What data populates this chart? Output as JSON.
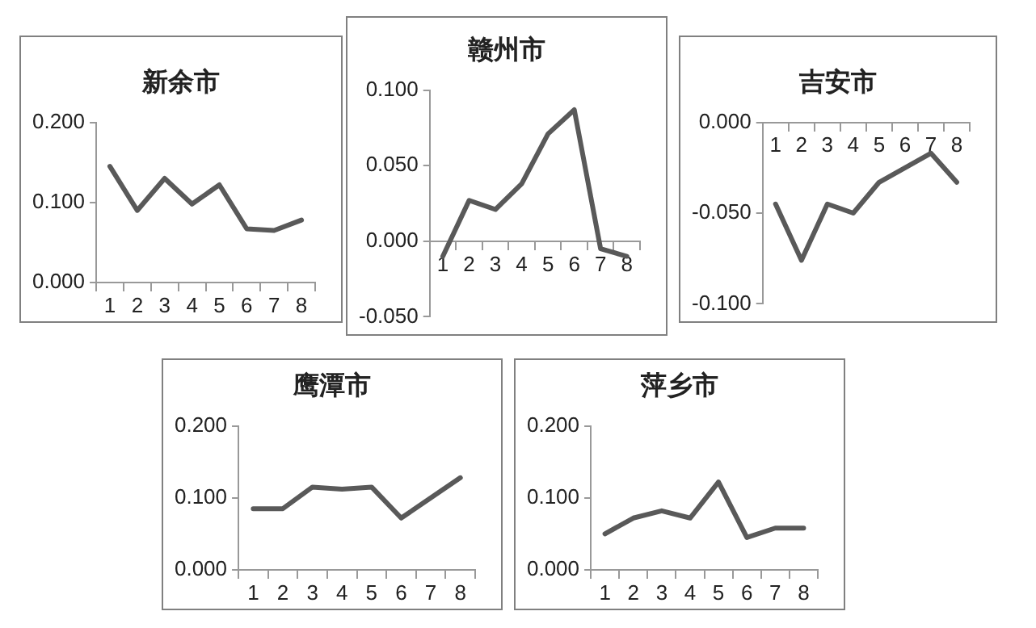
{
  "chart_data": [
    {
      "type": "line",
      "title": "新余市",
      "categories": [
        "1",
        "2",
        "3",
        "4",
        "5",
        "6",
        "7",
        "8"
      ],
      "series": [
        {
          "color": "#595959",
          "values": [
            0.145,
            0.09,
            0.13,
            0.098,
            0.122,
            0.067,
            0.065,
            0.078
          ]
        }
      ],
      "ylim": [
        0,
        0.2
      ],
      "yticks": [
        {
          "value": 0,
          "label": "0.000"
        },
        {
          "value": 0.1,
          "label": "0.100"
        },
        {
          "value": 0.2,
          "label": "0.200"
        }
      ],
      "grid": false,
      "legend": false,
      "marker": "none",
      "line_style": "solid"
    },
    {
      "type": "line",
      "title": "赣州市",
      "categories": [
        "1",
        "2",
        "3",
        "4",
        "5",
        "6",
        "7",
        "8"
      ],
      "series": [
        {
          "color": "#595959",
          "values": [
            -0.01,
            0.027,
            0.021,
            0.038,
            0.071,
            0.087,
            -0.005,
            -0.01
          ]
        }
      ],
      "ylim": [
        -0.05,
        0.1
      ],
      "yticks": [
        {
          "value": -0.05,
          "label": "-0.050"
        },
        {
          "value": 0,
          "label": "0.000"
        },
        {
          "value": 0.05,
          "label": "0.050"
        },
        {
          "value": 0.1,
          "label": "0.100"
        }
      ],
      "grid": false,
      "legend": false,
      "marker": "none",
      "line_style": "solid"
    },
    {
      "type": "line",
      "title": "吉安市",
      "categories": [
        "1",
        "2",
        "3",
        "4",
        "5",
        "6",
        "7",
        "8"
      ],
      "series": [
        {
          "color": "#595959",
          "values": [
            -0.045,
            -0.076,
            -0.045,
            -0.05,
            -0.033,
            -0.025,
            -0.017,
            -0.033
          ]
        }
      ],
      "ylim": [
        -0.1,
        0
      ],
      "yticks": [
        {
          "value": -0.1,
          "label": "-0.100"
        },
        {
          "value": -0.05,
          "label": "-0.050"
        },
        {
          "value": 0,
          "label": "0.000"
        }
      ],
      "grid": false,
      "legend": false,
      "marker": "none",
      "line_style": "solid"
    },
    {
      "type": "line",
      "title": "鹰潭市",
      "categories": [
        "1",
        "2",
        "3",
        "4",
        "5",
        "6",
        "7",
        "8"
      ],
      "series": [
        {
          "color": "#595959",
          "values": [
            0.085,
            0.085,
            0.115,
            0.112,
            0.115,
            0.072,
            0.1,
            0.128
          ]
        }
      ],
      "ylim": [
        0,
        0.2
      ],
      "yticks": [
        {
          "value": 0,
          "label": "0.000"
        },
        {
          "value": 0.1,
          "label": "0.100"
        },
        {
          "value": 0.2,
          "label": "0.200"
        }
      ],
      "grid": false,
      "legend": false,
      "marker": "none",
      "line_style": "solid"
    },
    {
      "type": "line",
      "title": "萍乡市",
      "categories": [
        "1",
        "2",
        "3",
        "4",
        "5",
        "6",
        "7",
        "8"
      ],
      "series": [
        {
          "color": "#595959",
          "values": [
            0.05,
            0.072,
            0.082,
            0.072,
            0.122,
            0.045,
            0.058,
            0.058
          ]
        }
      ],
      "ylim": [
        0,
        0.2
      ],
      "yticks": [
        {
          "value": 0,
          "label": "0.000"
        },
        {
          "value": 0.1,
          "label": "0.100"
        },
        {
          "value": 0.2,
          "label": "0.200"
        }
      ],
      "grid": false,
      "legend": false,
      "marker": "none",
      "line_style": "solid"
    }
  ]
}
